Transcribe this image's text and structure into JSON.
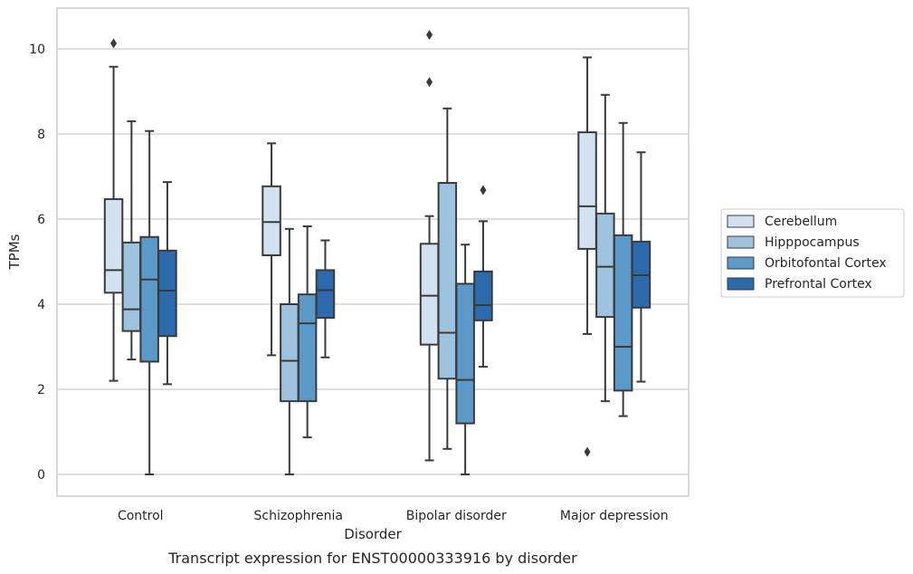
{
  "caption": "Transcript expression for ENST00000333916 by disorder",
  "chart_data": {
    "type": "box",
    "title": "",
    "xlabel": "Disorder",
    "ylabel": "TPMs",
    "ylim": [
      -0.5,
      10.95
    ],
    "yticks": [
      0,
      2,
      4,
      6,
      8,
      10
    ],
    "grid": "horizontal",
    "legend_position": "right",
    "categories": [
      "Control",
      "Schizophrenia",
      "Bipolar disorder",
      "Major depression"
    ],
    "series": [
      {
        "name": "Cerebellum",
        "color": "#d3e2f1",
        "boxes": [
          {
            "whislo": 2.2,
            "q1": 4.27,
            "med": 4.8,
            "q3": 6.47,
            "whishi": 9.58,
            "fliers": [
              10.13
            ]
          },
          {
            "whislo": 2.8,
            "q1": 5.15,
            "med": 5.93,
            "q3": 6.77,
            "whishi": 7.78,
            "fliers": []
          },
          {
            "whislo": 0.33,
            "q1": 3.05,
            "med": 4.2,
            "q3": 5.42,
            "whishi": 6.07,
            "fliers": [
              9.22,
              10.33
            ]
          },
          {
            "whislo": 3.3,
            "q1": 5.3,
            "med": 6.3,
            "q3": 8.04,
            "whishi": 9.8,
            "fliers": [
              0.53
            ]
          }
        ]
      },
      {
        "name": "Hipppocampus",
        "color": "#9dc3de",
        "boxes": [
          {
            "whislo": 2.7,
            "q1": 3.37,
            "med": 3.88,
            "q3": 5.45,
            "whishi": 8.3,
            "fliers": []
          },
          {
            "whislo": 0.0,
            "q1": 1.72,
            "med": 2.67,
            "q3": 4.0,
            "whishi": 5.77,
            "fliers": []
          },
          {
            "whislo": 0.6,
            "q1": 2.25,
            "med": 3.33,
            "q3": 6.85,
            "whishi": 8.6,
            "fliers": []
          },
          {
            "whislo": 1.72,
            "q1": 3.7,
            "med": 4.88,
            "q3": 6.13,
            "whishi": 8.92,
            "fliers": []
          }
        ]
      },
      {
        "name": "Orbitofontal Cortex",
        "color": "#5b9ac8",
        "boxes": [
          {
            "whislo": 0.0,
            "q1": 2.65,
            "med": 4.58,
            "q3": 5.58,
            "whishi": 8.07,
            "fliers": []
          },
          {
            "whislo": 0.87,
            "q1": 1.72,
            "med": 3.55,
            "q3": 4.23,
            "whishi": 5.83,
            "fliers": []
          },
          {
            "whislo": 0.0,
            "q1": 1.2,
            "med": 2.22,
            "q3": 4.48,
            "whishi": 5.4,
            "fliers": []
          },
          {
            "whislo": 1.37,
            "q1": 1.97,
            "med": 3.0,
            "q3": 5.62,
            "whishi": 8.26,
            "fliers": []
          }
        ]
      },
      {
        "name": "Prefrontal Cortex",
        "color": "#2b6bad",
        "boxes": [
          {
            "whislo": 2.12,
            "q1": 3.25,
            "med": 4.32,
            "q3": 5.26,
            "whishi": 6.87,
            "fliers": []
          },
          {
            "whislo": 2.75,
            "q1": 3.68,
            "med": 4.33,
            "q3": 4.8,
            "whishi": 5.5,
            "fliers": []
          },
          {
            "whislo": 2.53,
            "q1": 3.62,
            "med": 3.98,
            "q3": 4.77,
            "whishi": 5.95,
            "fliers": [
              6.68
            ]
          },
          {
            "whislo": 2.18,
            "q1": 3.92,
            "med": 4.68,
            "q3": 5.47,
            "whishi": 7.57,
            "fliers": []
          }
        ]
      }
    ]
  }
}
